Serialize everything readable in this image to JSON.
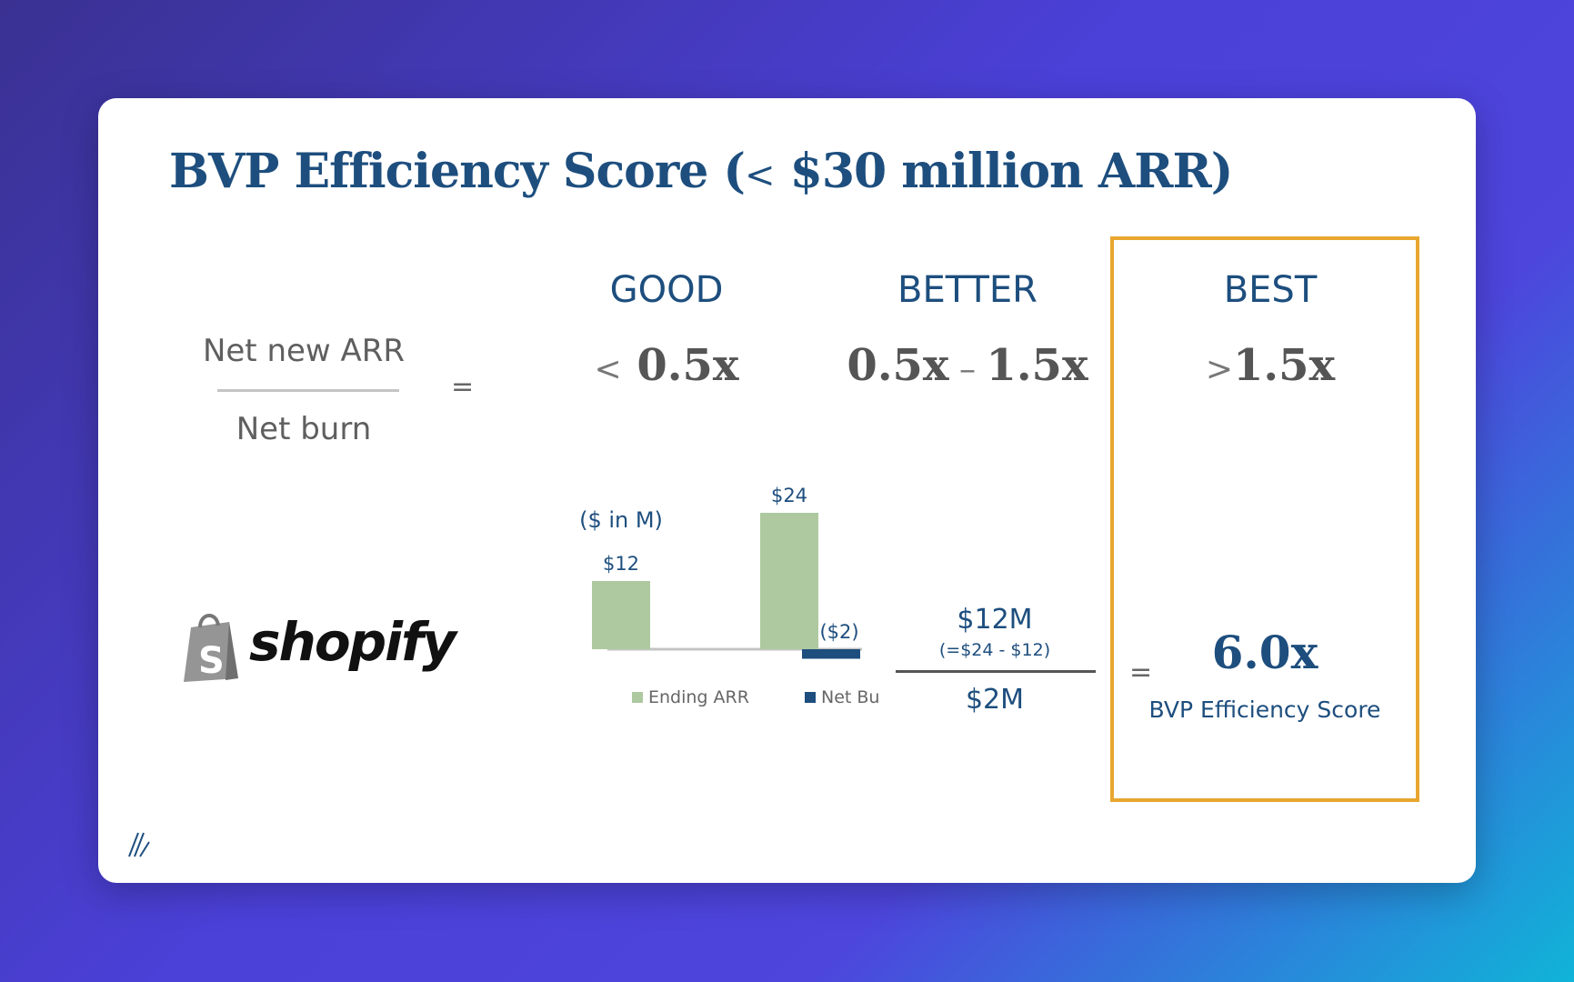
{
  "slide": {
    "title_main": "BVP Efficiency Score (",
    "title_lt": "<",
    "title_rest": " $30 million ARR)"
  },
  "formula": {
    "numerator": "Net new ARR",
    "denominator": "Net burn",
    "equals": "="
  },
  "tiers": [
    {
      "label": "GOOD",
      "symbol": "<",
      "value": " 0.5x"
    },
    {
      "label": "BETTER",
      "value": "0.5x",
      "dash": " – ",
      "value2": "1.5x"
    },
    {
      "label": "BEST",
      "symbol": ">",
      "value": "1.5x"
    }
  ],
  "logo": {
    "text": "shopify",
    "icon": "shopify-bag-icon",
    "color": "#95bf47"
  },
  "chart_data": {
    "type": "bar",
    "unit_label": "($ in M)",
    "series": [
      {
        "name": "Ending ARR",
        "color": "#aec9a0"
      },
      {
        "name": "Net Burn",
        "color": "#1d4e7e"
      }
    ],
    "bars": [
      {
        "series": "Ending ARR",
        "value": 12,
        "label": "$12"
      },
      {
        "series": "Ending ARR",
        "value": 24,
        "label": "$24"
      },
      {
        "series": "Net Burn",
        "value": -2,
        "label": "($2)"
      }
    ],
    "legend_position": "bottom",
    "grid": false
  },
  "calculation": {
    "numerator": "$12M",
    "numerator_note": "(=$24 - $12)",
    "denominator": "$2M",
    "equals": "="
  },
  "result": {
    "score": "6.0x",
    "label": "BVP Efficiency Score",
    "box_color": "#e8a630"
  },
  "branding": {
    "mark_icon": "bvp-slash-mark-icon"
  }
}
